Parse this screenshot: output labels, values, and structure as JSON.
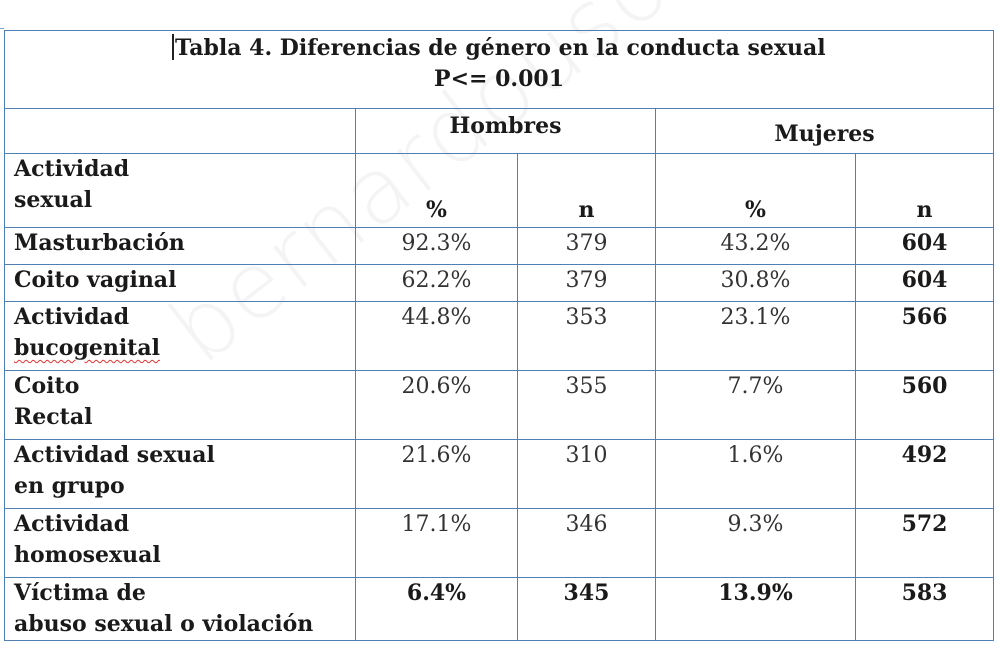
{
  "watermark": "bernardousoine.com",
  "table": {
    "title": "Tabla 4. Diferencias de género en la conducta sexual",
    "subtitle": "P<= 0.001",
    "groups": {
      "men": "Hombres",
      "women": "Mujeres"
    },
    "header_label_line1": "Actividad",
    "header_label_line2": "sexual",
    "col_pct": "%",
    "col_n": "n",
    "rows": [
      {
        "label1": "Masturbación",
        "label2": "",
        "m_pct": "92.3%",
        "m_n": "379",
        "w_pct": "43.2%",
        "w_n": "604"
      },
      {
        "label1": "Coito vaginal",
        "label2": "",
        "m_pct": "62.2%",
        "m_n": "379",
        "w_pct": "30.8%",
        "w_n": "604"
      },
      {
        "label1": "Actividad",
        "label2": "bucogenital",
        "m_pct": "44.8%",
        "m_n": "353",
        "w_pct": "23.1%",
        "w_n": "566"
      },
      {
        "label1": "Coito",
        "label2": "Rectal",
        "m_pct": "20.6%",
        "m_n": "355",
        "w_pct": "7.7%",
        "w_n": "560"
      },
      {
        "label1": "Actividad sexual",
        "label2": "en grupo",
        "m_pct": "21.6%",
        "m_n": "310",
        "w_pct": "1.6%",
        "w_n": "492"
      },
      {
        "label1": "Actividad",
        "label2": "homosexual",
        "m_pct": "17.1%",
        "m_n": "346",
        "w_pct": "9.3%",
        "w_n": "572"
      },
      {
        "label1": "Víctima de",
        "label2": "abuso sexual o violación",
        "m_pct": "6.4%",
        "m_n": "345",
        "w_pct": "13.9%",
        "w_n": "583"
      }
    ]
  }
}
